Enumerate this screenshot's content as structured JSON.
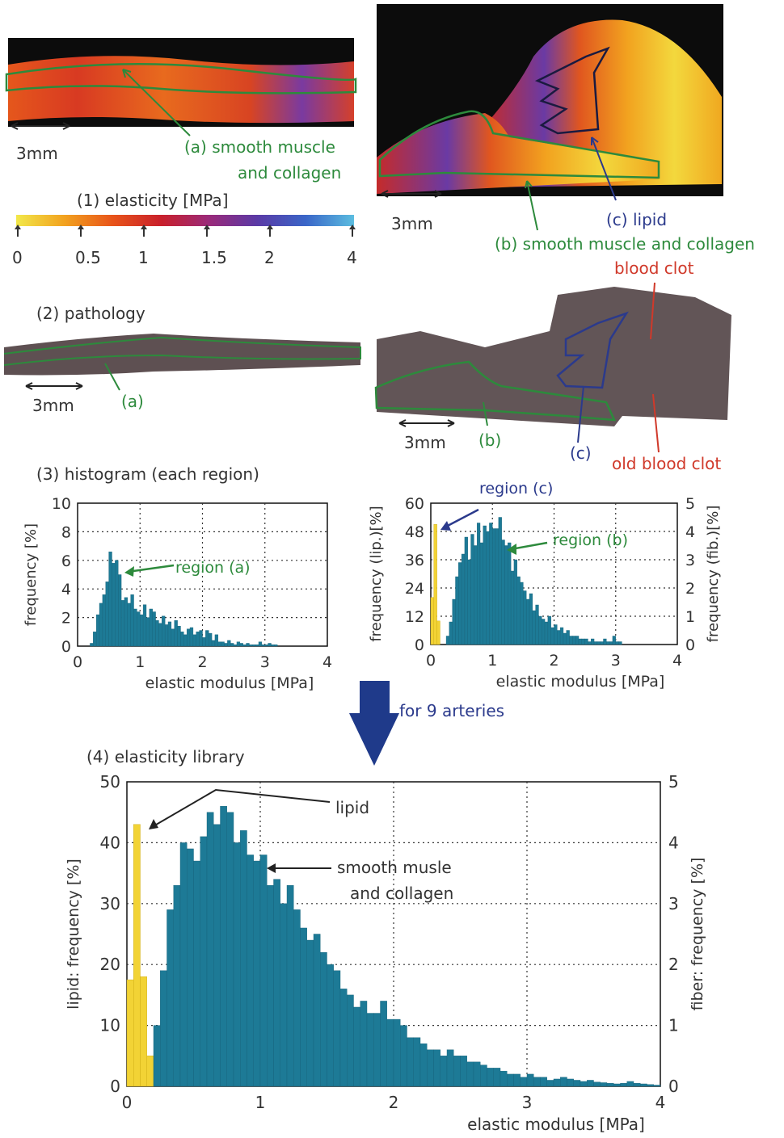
{
  "labels": {
    "scale_a": "3mm",
    "scale_b": "3mm",
    "scale_c": "3mm",
    "scale_d": "3mm",
    "region_a_line1": "(a) smooth muscle",
    "region_a_line2": "and collagen",
    "region_b_full": "(b) smooth muscle and collagen",
    "region_c": "(c) lipid",
    "elasticity_title": "(1) elasticity  [MPa]",
    "pathology_title": "(2) pathology",
    "path_a": "(a)",
    "path_b": "(b)",
    "path_c": "(c)",
    "blood_clot": "blood clot",
    "old_blood_clot": "old blood clot",
    "histogram_title": "(3) histogram (each region)",
    "arrow_text": "for 9 arteries",
    "library_title": "(4) elasticity library"
  },
  "colorbar": {
    "ticks": [
      "0",
      "0.5",
      "1",
      "1.5",
      "2",
      "4"
    ],
    "colors": [
      "#f2e84a",
      "#f2a21f",
      "#e8541a",
      "#c9202b",
      "#9a2a7a",
      "#5a3aa6",
      "#3a66c8",
      "#5bbde0"
    ]
  },
  "colors": {
    "teal": "#1d7a96",
    "yellow": "#f2d335",
    "green_text": "#2d8a3c",
    "navy_text": "#2b3a8c",
    "red_text": "#d0392a",
    "arrow": "#1f3a8a"
  },
  "chart_data": [
    {
      "type": "bar",
      "title": "",
      "xlabel": "elastic modulus [MPa]",
      "ylabel": "frequency [%]",
      "xlim": [
        0,
        4
      ],
      "ylim": [
        0,
        10
      ],
      "xticks": [
        "0",
        "1",
        "2",
        "3",
        "4"
      ],
      "yticks": [
        "0",
        "2",
        "4",
        "6",
        "8",
        "10"
      ],
      "annotation": "region (a)",
      "bin_width": 0.05,
      "series": [
        {
          "x_start": 0.2,
          "values": [
            0.2,
            1.0,
            2.2,
            3.0,
            3.6,
            4.5,
            6.6,
            5.8,
            6.0,
            5.0,
            3.2,
            3.4,
            3.0,
            3.6,
            2.6,
            2.4,
            2.2,
            2.9,
            2.0,
            2.6,
            2.4,
            1.8,
            1.6,
            2.1,
            1.5,
            1.7,
            1.2,
            1.8,
            1.4,
            1.0,
            0.8,
            1.2,
            1.3,
            0.8,
            1.0,
            1.1,
            0.6,
            1.1,
            0.9,
            0.4,
            0.8,
            0.3,
            0.3,
            0.2,
            0.4,
            0.2,
            0.1,
            0.3,
            0.2,
            0.1,
            0.2,
            0.1,
            0.1,
            0.1,
            0.3,
            0.1,
            0.1,
            0.2,
            0.1,
            0.1
          ]
        }
      ]
    },
    {
      "type": "bar",
      "title": "",
      "xlabel": "elastic modulus [MPa]",
      "ylabel": "frequency (lip.)[%]",
      "ylabel_right": "frequency (fib.)[%]",
      "xlim": [
        0,
        4
      ],
      "ylim": [
        0,
        60
      ],
      "ylim_right": [
        0,
        5
      ],
      "xticks": [
        "0",
        "1",
        "2",
        "3",
        "4"
      ],
      "yticks": [
        "0",
        "12",
        "24",
        "36",
        "48",
        "60"
      ],
      "yticks_right": [
        "0",
        "1",
        "2",
        "3",
        "4",
        "5"
      ],
      "annotations": [
        "region (c)",
        "region (b)"
      ],
      "bin_width": 0.05,
      "series": [
        {
          "name": "lipid",
          "x_start": 0.0,
          "values": [
            20,
            51,
            10
          ]
        },
        {
          "name": "fiber",
          "x_start": 0.25,
          "values": [
            0.3,
            0.8,
            1.6,
            2.4,
            2.9,
            3.2,
            3.8,
            3.0,
            3.9,
            3.5,
            4.3,
            3.6,
            4.2,
            4.0,
            4.3,
            4.1,
            4.1,
            4.5,
            3.7,
            3.5,
            3.6,
            2.6,
            3.0,
            2.4,
            2.2,
            1.9,
            1.6,
            1.8,
            1.2,
            1.4,
            1.0,
            0.9,
            0.8,
            1.0,
            0.6,
            0.7,
            0.5,
            0.6,
            0.4,
            0.5,
            0.3,
            0.3,
            0.3,
            0.2,
            0.2,
            0.2,
            0.1,
            0.2,
            0.1,
            0.1,
            0.1,
            0.2,
            0.1,
            0.1,
            0.3,
            0.1,
            0.1
          ]
        }
      ]
    },
    {
      "type": "bar",
      "title": "",
      "xlabel": "elastic modulus [MPa]",
      "ylabel": "lipid: frequency [%]",
      "ylabel_right": "fiber: frequency [%]",
      "xlim": [
        0,
        4
      ],
      "ylim": [
        0,
        50
      ],
      "ylim_right": [
        0,
        5
      ],
      "xticks": [
        "0",
        "1",
        "2",
        "3",
        "4"
      ],
      "yticks": [
        "0",
        "10",
        "20",
        "30",
        "40",
        "50"
      ],
      "yticks_right": [
        "0",
        "1",
        "2",
        "3",
        "4",
        "5"
      ],
      "annotations": [
        "lipid",
        "smooth musle",
        "and collagen"
      ],
      "bin_width": 0.05,
      "series": [
        {
          "name": "lipid",
          "x_start": 0.0,
          "values": [
            17.5,
            43,
            18,
            5
          ]
        },
        {
          "name": "fiber",
          "x_start": 0.2,
          "values": [
            1.0,
            1.9,
            2.9,
            3.3,
            4.0,
            3.9,
            3.7,
            4.1,
            4.5,
            4.3,
            4.6,
            4.5,
            4.0,
            4.2,
            3.8,
            3.7,
            3.8,
            3.3,
            3.4,
            3.0,
            3.3,
            2.9,
            2.6,
            2.4,
            2.5,
            2.2,
            2.0,
            1.9,
            1.6,
            1.5,
            1.3,
            1.4,
            1.2,
            1.2,
            1.4,
            1.1,
            1.1,
            1.0,
            0.8,
            0.8,
            0.7,
            0.6,
            0.6,
            0.5,
            0.6,
            0.5,
            0.5,
            0.4,
            0.4,
            0.35,
            0.3,
            0.3,
            0.25,
            0.2,
            0.2,
            0.15,
            0.2,
            0.15,
            0.15,
            0.1,
            0.12,
            0.15,
            0.12,
            0.1,
            0.08,
            0.1,
            0.07,
            0.06,
            0.05,
            0.04,
            0.05,
            0.08,
            0.05,
            0.04,
            0.03,
            0.02,
            0.03,
            0.02
          ]
        }
      ]
    }
  ]
}
